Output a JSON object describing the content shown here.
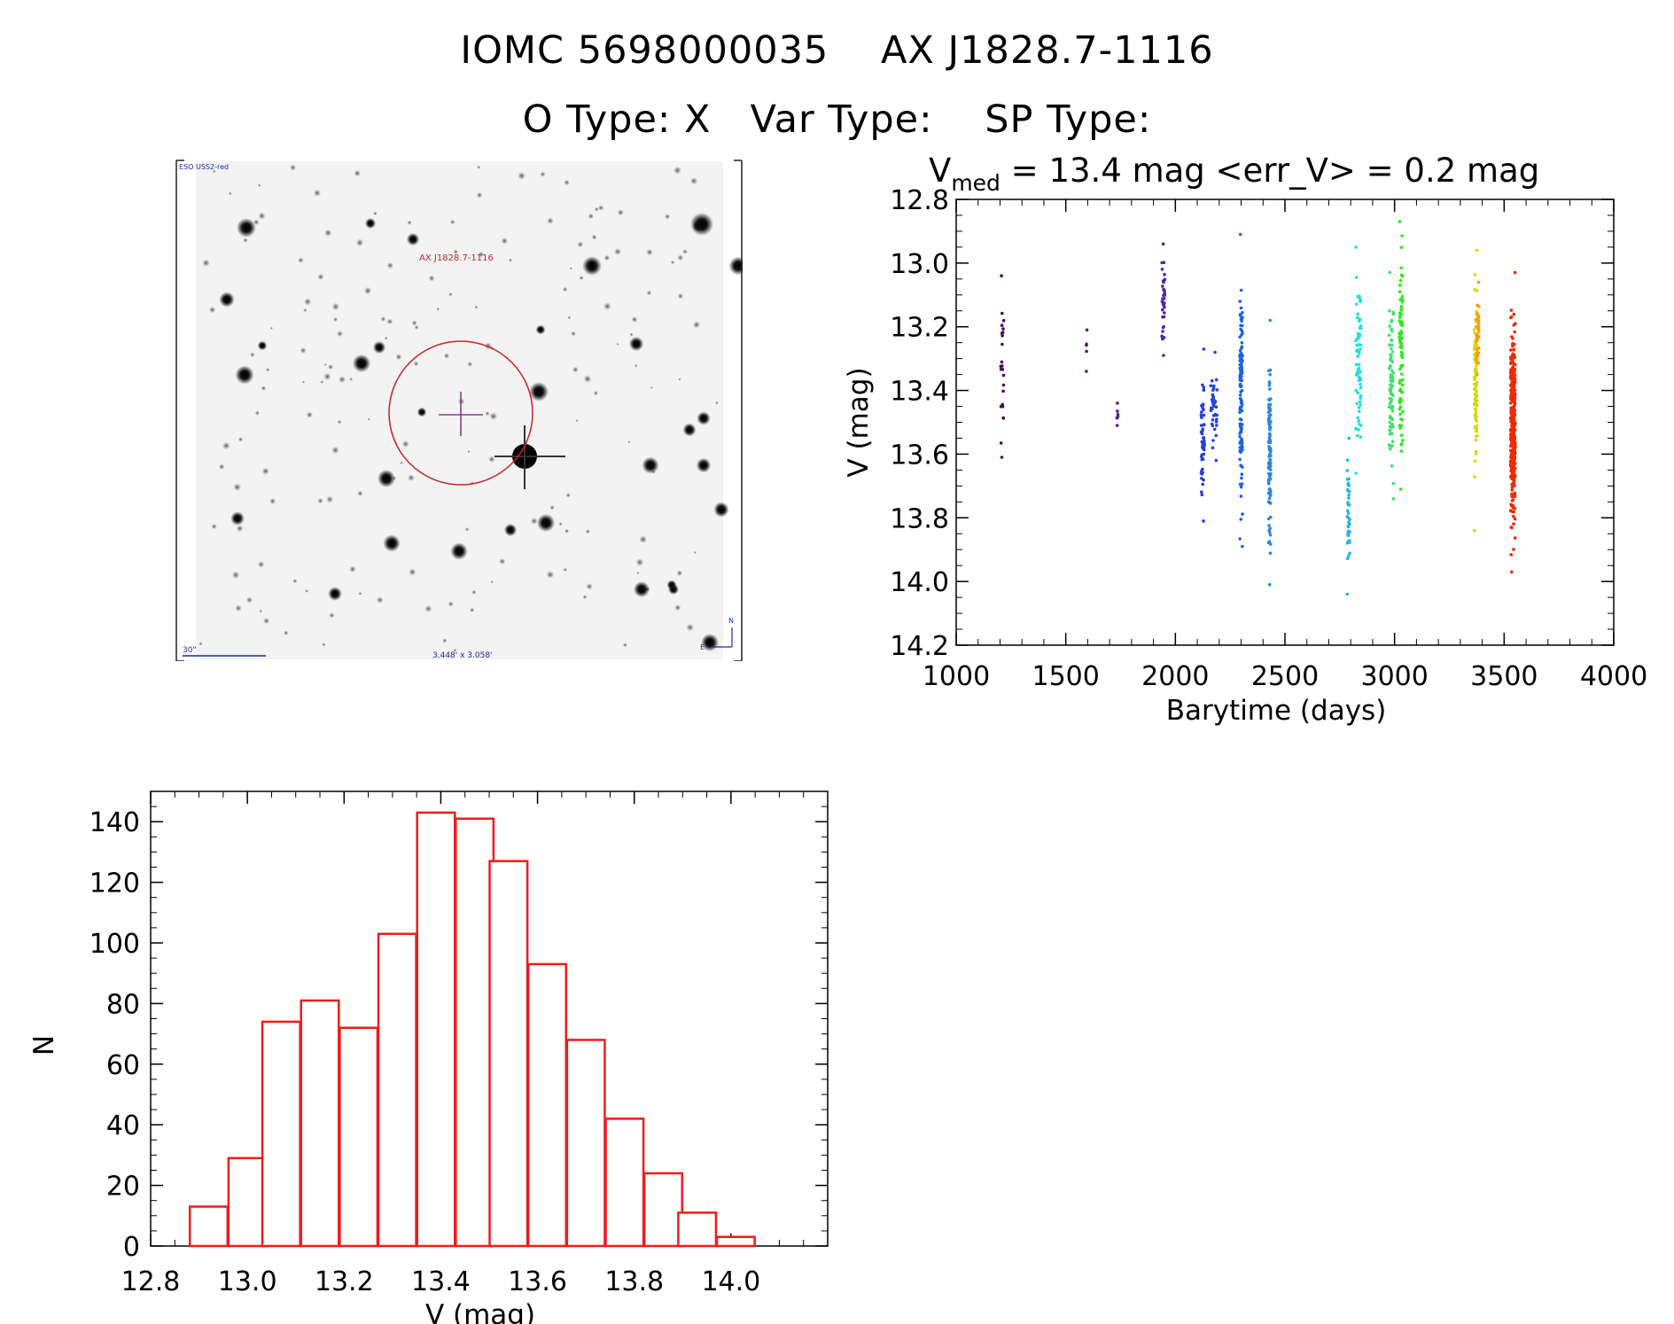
{
  "header": {
    "title_line1": "IOMC 5698000035    AX J1828.7-1116",
    "title_line2": "O Type: X   Var Type:    SP Type:"
  },
  "finder": {
    "survey": "ESO USS2-red",
    "target_label": "AX J1828.7-1116",
    "scale_label": "30\"",
    "fov_label": "3.448' x 3.058'",
    "compass_n": "N",
    "compass_e": "E"
  },
  "chart_data": [
    {
      "type": "scatter",
      "title_parts": {
        "v": "V",
        "sub": "med",
        "rest": " = 13.4 mag <err_V> = 0.2 mag"
      },
      "xlabel": "Barytime (days)",
      "ylabel": "V (mag)",
      "xlim": [
        1000,
        4000
      ],
      "ylim": [
        14.2,
        12.8
      ],
      "y_inverted": true,
      "xticks": [
        1000,
        1500,
        2000,
        2500,
        3000,
        3500,
        4000
      ],
      "yticks": [
        "12.8",
        "13.0",
        "13.2",
        "13.4",
        "13.6",
        "13.8",
        "14.0",
        "14.2"
      ],
      "clusters": [
        {
          "x": 1210,
          "xw": 14,
          "ymin": 13.04,
          "ymax": 13.61,
          "n": 24,
          "color": "#4a0a5a"
        },
        {
          "x": 1595,
          "xw": 4,
          "ymin": 13.21,
          "ymax": 13.34,
          "n": 5,
          "color": "#5a1670"
        },
        {
          "x": 1735,
          "xw": 6,
          "ymin": 13.44,
          "ymax": 13.51,
          "n": 6,
          "color": "#5a1e8a"
        },
        {
          "x": 1945,
          "xw": 14,
          "ymin": 12.94,
          "ymax": 13.29,
          "n": 38,
          "color": "#4a28b0"
        },
        {
          "x": 2125,
          "xw": 16,
          "ymin": 13.27,
          "ymax": 13.81,
          "n": 50,
          "color": "#2a3cd8"
        },
        {
          "x": 2175,
          "xw": 30,
          "ymin": 13.28,
          "ymax": 13.62,
          "n": 40,
          "color": "#2244e0"
        },
        {
          "x": 2300,
          "xw": 12,
          "ymin": 12.91,
          "ymax": 13.89,
          "n": 130,
          "color": "#1e60e6"
        },
        {
          "x": 2430,
          "xw": 10,
          "ymin": 13.18,
          "ymax": 14.01,
          "n": 110,
          "color": "#2a88e0"
        },
        {
          "x": 2790,
          "xw": 12,
          "ymin": 13.55,
          "ymax": 14.04,
          "n": 40,
          "color": "#20b8e8"
        },
        {
          "x": 2835,
          "xw": 24,
          "ymin": 12.95,
          "ymax": 13.66,
          "n": 70,
          "color": "#20e0e0"
        },
        {
          "x": 2985,
          "xw": 20,
          "ymin": 13.03,
          "ymax": 13.74,
          "n": 80,
          "color": "#40e070"
        },
        {
          "x": 3030,
          "xw": 16,
          "ymin": 12.87,
          "ymax": 13.71,
          "n": 90,
          "color": "#30e820"
        },
        {
          "x": 3370,
          "xw": 14,
          "ymin": 12.96,
          "ymax": 13.84,
          "n": 100,
          "color": "#d8d800"
        },
        {
          "x": 3380,
          "xw": 10,
          "ymin": 13.06,
          "ymax": 13.35,
          "n": 40,
          "color": "#ff9a00"
        },
        {
          "x": 3540,
          "xw": 22,
          "ymin": 13.03,
          "ymax": 13.97,
          "n": 320,
          "color": "#ee2a00"
        }
      ]
    },
    {
      "type": "bar",
      "subtype": "histogram",
      "xlabel": "V (mag)",
      "ylabel": "N",
      "xlim": [
        12.8,
        14.2
      ],
      "ylim": [
        0,
        150
      ],
      "xticks": [
        "12.8",
        "13.0",
        "13.2",
        "13.4",
        "13.6",
        "13.8",
        "14.0"
      ],
      "yticks": [
        0,
        20,
        40,
        60,
        80,
        100,
        120,
        140
      ],
      "bin_width": 0.078,
      "bin_centers": [
        12.92,
        13.0,
        13.07,
        13.15,
        13.23,
        13.31,
        13.39,
        13.47,
        13.54,
        13.62,
        13.7,
        13.78,
        13.86,
        13.93,
        14.01
      ],
      "counts": [
        13,
        29,
        74,
        81,
        72,
        103,
        143,
        141,
        127,
        93,
        68,
        42,
        24,
        11,
        3
      ],
      "bar_color": "#ee1c1c"
    }
  ]
}
